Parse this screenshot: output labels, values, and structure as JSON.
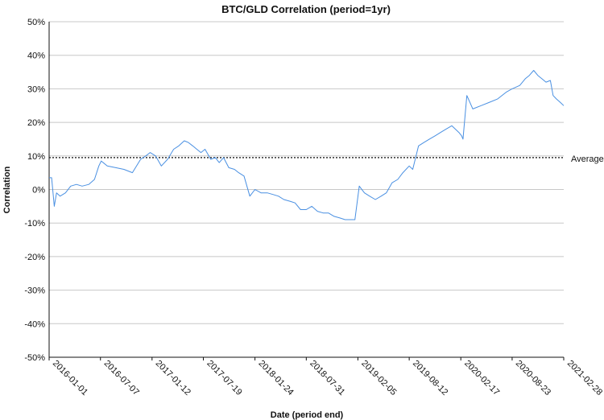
{
  "chart_data": {
    "type": "line",
    "title": "BTC/GLD Correlation (period=1yr)",
    "xlabel": "Date (period end)",
    "ylabel": "Correlation",
    "ylim": [
      -50,
      50
    ],
    "y_unit": "%",
    "y_ticks": [
      "50%",
      "40%",
      "30%",
      "20%",
      "10%",
      "0%",
      "-10%",
      "-20%",
      "-30%",
      "-40%",
      "-50%"
    ],
    "x_range": [
      "2016-01-01",
      "2021-02-28"
    ],
    "x_ticks": [
      "2016-01-01",
      "2016-07-07",
      "2017-01-12",
      "2017-07-19",
      "2018-01-24",
      "2018-07-31",
      "2019-02-05",
      "2019-08-12",
      "2020-02-17",
      "2020-08-23",
      "2021-02-28"
    ],
    "grid": "horizontal",
    "line_color": "#4a90e2",
    "series": [
      {
        "x": [
          "2016-01-01",
          "2016-01-10",
          "2016-01-20",
          "2016-01-28",
          "2016-02-10",
          "2016-03-01",
          "2016-03-20",
          "2016-04-10",
          "2016-05-01",
          "2016-05-25",
          "2016-06-15",
          "2016-07-01",
          "2016-07-10",
          "2016-08-01",
          "2016-09-01",
          "2016-10-01",
          "2016-11-01",
          "2016-12-01",
          "2016-12-20",
          "2017-01-05",
          "2017-01-25",
          "2017-02-15",
          "2017-03-10",
          "2017-04-01",
          "2017-04-20",
          "2017-05-10",
          "2017-05-25",
          "2017-06-10",
          "2017-06-25",
          "2017-07-10",
          "2017-07-25",
          "2017-08-15",
          "2017-09-01",
          "2017-09-15",
          "2017-10-01",
          "2017-10-20",
          "2017-11-10",
          "2017-11-25",
          "2017-12-15",
          "2018-01-05",
          "2018-01-24",
          "2018-02-15",
          "2018-03-10",
          "2018-04-01",
          "2018-04-20",
          "2018-05-10",
          "2018-06-01",
          "2018-06-20",
          "2018-07-10",
          "2018-07-31",
          "2018-08-20",
          "2018-09-10",
          "2018-10-01",
          "2018-10-20",
          "2018-11-10",
          "2018-12-01",
          "2018-12-20",
          "2019-01-10",
          "2019-01-25",
          "2019-02-10",
          "2019-03-01",
          "2019-03-20",
          "2019-04-10",
          "2019-05-01",
          "2019-05-20",
          "2019-06-10",
          "2019-07-01",
          "2019-07-20",
          "2019-08-12",
          "2019-08-25",
          "2019-09-15",
          "2019-10-05",
          "2019-10-25",
          "2019-11-15",
          "2019-12-05",
          "2019-12-25",
          "2020-01-15",
          "2020-02-10",
          "2020-02-20",
          "2020-02-25",
          "2020-03-10",
          "2020-04-01",
          "2020-05-01",
          "2020-06-01",
          "2020-07-01",
          "2020-08-01",
          "2020-08-23",
          "2020-09-20",
          "2020-10-10",
          "2020-10-25",
          "2020-11-10",
          "2020-11-25",
          "2020-12-10",
          "2020-12-25",
          "2021-01-10",
          "2021-01-20",
          "2021-02-01",
          "2021-02-15",
          "2021-02-28"
        ],
        "values": [
          3.5,
          3.5,
          -5,
          -1,
          -2,
          -1,
          1,
          1.5,
          1,
          1.5,
          3,
          7,
          8.5,
          7,
          6.5,
          6,
          5,
          9,
          10,
          11,
          10,
          7,
          9,
          12,
          13,
          14.5,
          14,
          13,
          12,
          11,
          12,
          9,
          9.5,
          8,
          9.5,
          6.5,
          6,
          5,
          4,
          -2,
          0,
          -1,
          -1,
          -1.5,
          -2,
          -3,
          -3.5,
          -4,
          -6,
          -6,
          -5,
          -6.5,
          -7,
          -7,
          -8,
          -8.5,
          -9,
          -9,
          -9,
          1,
          -1,
          -2,
          -3,
          -2,
          -1,
          2,
          3,
          5,
          7,
          6,
          13,
          14,
          15,
          16,
          17,
          18,
          19,
          17,
          16,
          15,
          28,
          24,
          25,
          26,
          27,
          29,
          30,
          31,
          33,
          34,
          35.5,
          34,
          33,
          32,
          32.5,
          28,
          27,
          26,
          25
        ]
      }
    ],
    "reference_line": {
      "label": "Average",
      "value": 9.5,
      "style": "dotted"
    }
  }
}
